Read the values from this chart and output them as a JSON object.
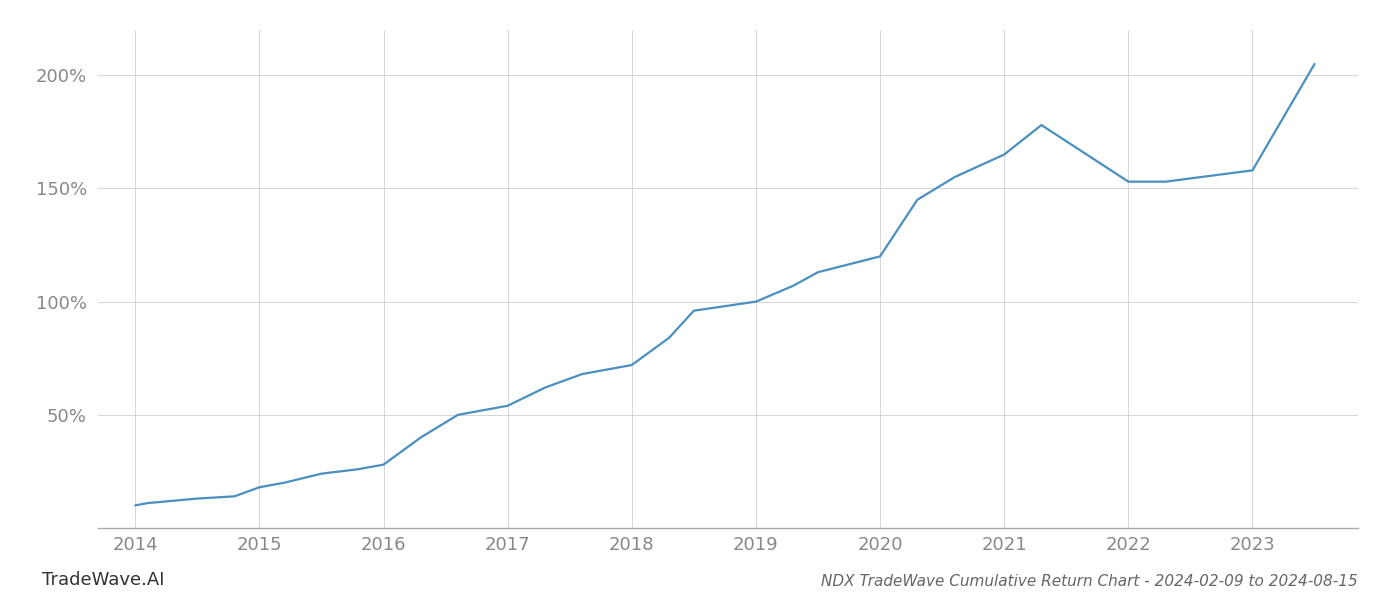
{
  "title": "NDX TradeWave Cumulative Return Chart - 2024-02-09 to 2024-08-15",
  "watermark": "TradeWave.AI",
  "line_color": "#4a8fc0",
  "background_color": "#ffffff",
  "grid_color": "#d0d0d0",
  "x_years": [
    2014,
    2015,
    2016,
    2017,
    2018,
    2019,
    2020,
    2021,
    2022,
    2023
  ],
  "x_data": [
    2014.0,
    2014.1,
    2014.3,
    2014.5,
    2014.8,
    2015.0,
    2015.2,
    2015.5,
    2015.8,
    2016.0,
    2016.3,
    2016.6,
    2017.0,
    2017.3,
    2017.6,
    2018.0,
    2018.3,
    2018.5,
    2019.0,
    2019.3,
    2019.5,
    2020.0,
    2020.3,
    2020.6,
    2021.0,
    2021.3,
    2022.0,
    2022.3,
    2023.0,
    2023.5
  ],
  "y_data": [
    10,
    11,
    12,
    13,
    14,
    18,
    20,
    24,
    26,
    28,
    40,
    50,
    54,
    62,
    68,
    72,
    84,
    96,
    100,
    107,
    113,
    120,
    145,
    155,
    165,
    178,
    153,
    153,
    158,
    205
  ],
  "yticks": [
    50,
    100,
    150,
    200
  ],
  "ylim": [
    0,
    220
  ],
  "xlim": [
    2013.7,
    2023.85
  ],
  "line_width": 1.6,
  "title_fontsize": 11,
  "tick_fontsize": 13,
  "watermark_fontsize": 13,
  "title_color": "#666666",
  "tick_color": "#888888",
  "watermark_color": "#333333",
  "spine_color": "#aaaaaa"
}
